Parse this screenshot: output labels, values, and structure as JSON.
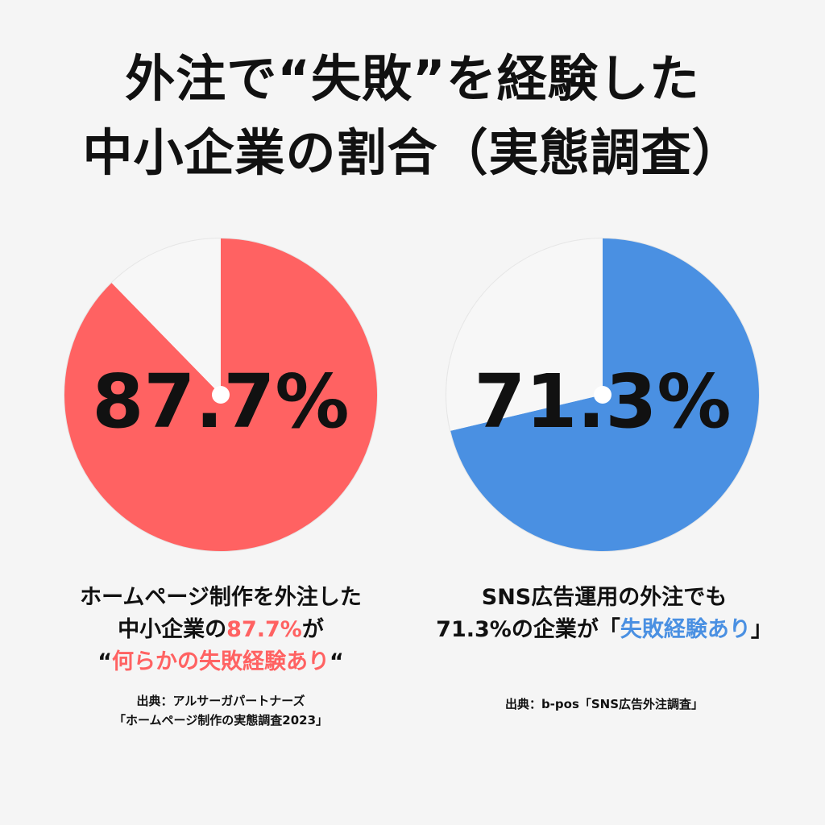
{
  "title": {
    "line1": "外注で“失敗”を経験した",
    "line2": "中小企業の割合（実態調査）"
  },
  "colors": {
    "background": "#f5f5f5",
    "red": "#ff6262",
    "blue": "#4a90e2",
    "track": "#f7f7f7",
    "text": "#111111"
  },
  "chart_data": [
    {
      "type": "pie",
      "values": [
        87.7,
        12.3
      ],
      "label": "87.7%",
      "colors": [
        "#ff6262",
        "#f7f7f7"
      ]
    },
    {
      "type": "pie",
      "values": [
        71.3,
        28.7
      ],
      "label": "71.3%",
      "colors": [
        "#4a90e2",
        "#f7f7f7"
      ]
    }
  ],
  "left": {
    "caption_line1": "ホームページ制作を外注した",
    "caption_line2_pre": "中小企業の",
    "caption_line2_highlight": "87.7%",
    "caption_line2_post": "が",
    "caption_line3_open": "“",
    "caption_line3_highlight": "何らかの失敗経験あり",
    "caption_line3_close": "“",
    "source_line1": "出典：アルサーガパートナーズ",
    "source_line2": "「ホームページ制作の実態調査2023」"
  },
  "right": {
    "caption_line1": "SNS広告運用の外注でも",
    "caption_line2_pre": "71.3%の企業が「",
    "caption_line2_highlight": "失敗経験あり",
    "caption_line2_post": "」",
    "source_line1": "出典：b-pos「SNS広告外注調査」"
  }
}
